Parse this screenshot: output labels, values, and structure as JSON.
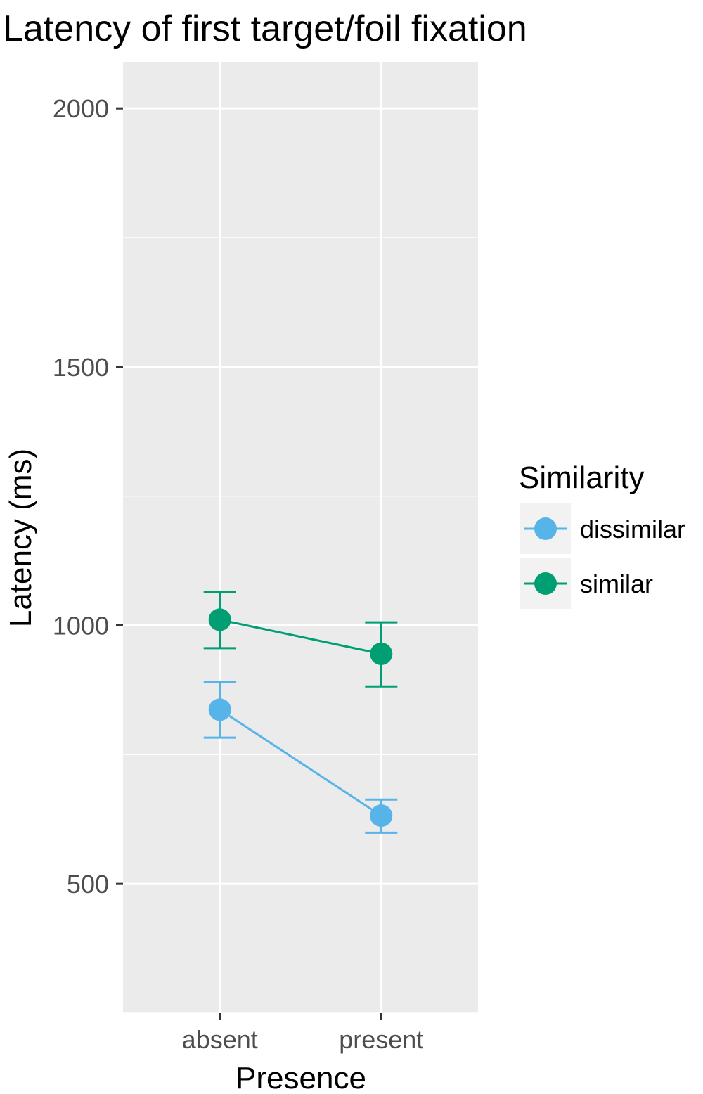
{
  "chart_data": {
    "type": "line",
    "title": "Latency of first target/foil fixation",
    "xlabel": "Presence",
    "ylabel": "Latency (ms)",
    "categories": [
      "absent",
      "present"
    ],
    "ylim": [
      250,
      2090
    ],
    "yticks": [
      500,
      1000,
      1500,
      2000
    ],
    "grid": true,
    "legend": {
      "title": "Similarity",
      "placement": "right"
    },
    "series": [
      {
        "name": "dissimilar",
        "color": "#56B4E9",
        "values": [
          837,
          632
        ],
        "error_low": [
          783,
          599
        ],
        "error_high": [
          890,
          663
        ]
      },
      {
        "name": "similar",
        "color": "#009E73",
        "values": [
          1011,
          945
        ],
        "error_low": [
          956,
          882
        ],
        "error_high": [
          1065,
          1006
        ]
      }
    ]
  }
}
